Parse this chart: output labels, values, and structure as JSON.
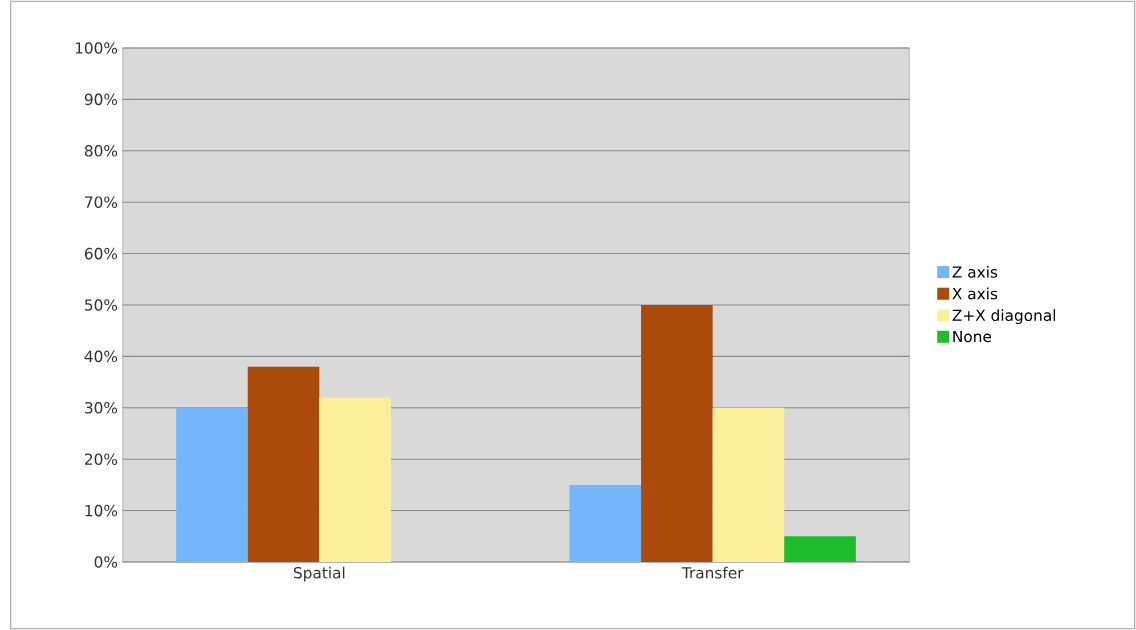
{
  "chart_data": {
    "type": "bar",
    "categories": [
      "Spatial",
      "Transfer"
    ],
    "series": [
      {
        "name": "Z axis",
        "color": "#74b6fb",
        "values": [
          30,
          15
        ]
      },
      {
        "name": "X axis",
        "color": "#ac4a0c",
        "values": [
          38,
          50
        ]
      },
      {
        "name": "Z+X diagonal",
        "color": "#fcef9c",
        "values": [
          32,
          30
        ]
      },
      {
        "name": "None",
        "color": "#1cbc2c",
        "values": [
          null,
          5
        ]
      }
    ],
    "ylim": [
      0,
      100
    ],
    "yticks": [
      {
        "value": 0,
        "label": "0%"
      },
      {
        "value": 10,
        "label": "10%"
      },
      {
        "value": 20,
        "label": "20%"
      },
      {
        "value": 30,
        "label": "30%"
      },
      {
        "value": 40,
        "label": "40%"
      },
      {
        "value": 50,
        "label": "50%"
      },
      {
        "value": 60,
        "label": "60%"
      },
      {
        "value": 70,
        "label": "70%"
      },
      {
        "value": 80,
        "label": "80%"
      },
      {
        "value": 90,
        "label": "90%"
      },
      {
        "value": 100,
        "label": "100%"
      }
    ],
    "grid": "y",
    "legend": "right"
  }
}
